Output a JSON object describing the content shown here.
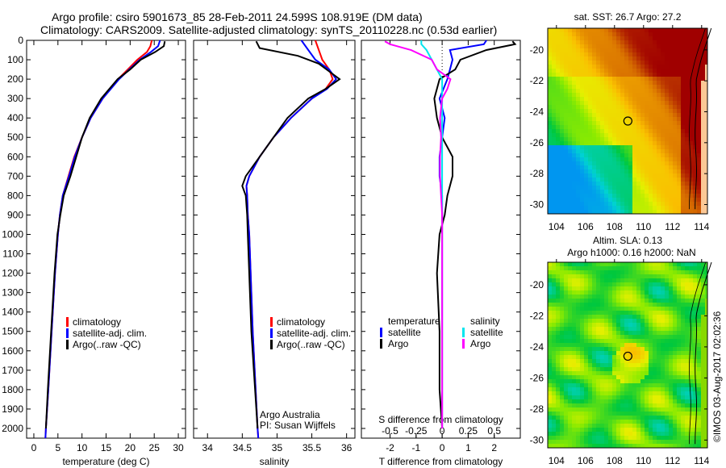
{
  "header": {
    "title_line1": "Argo profile: csiro 5901673_85 28-Feb-2011 24.599S 108.919E (DM data)",
    "title_line2": "Climatology: CARS2009. Satellite-adjusted climatology: synTS_20110228.nc (0.53d earlier)"
  },
  "credit": "©IMOS 03-Aug-2017 02:02:36",
  "colors": {
    "climatology": "#ff0000",
    "satellite": "#0000ff",
    "argo": "#000000",
    "sal_satellite": "#00e5ee",
    "sal_argo": "#ff00ff"
  },
  "chart_data": [
    {
      "type": "line",
      "id": "temperature",
      "xlabel": "temperature (deg C)",
      "ylabel": "",
      "xlim": [
        -1.5,
        31.5
      ],
      "ylim": [
        2050,
        0
      ],
      "xticks": [
        0,
        5,
        10,
        15,
        20,
        25,
        30
      ],
      "yticks": [
        0,
        100,
        200,
        300,
        400,
        500,
        600,
        700,
        800,
        900,
        1000,
        1100,
        1200,
        1300,
        1400,
        1500,
        1600,
        1700,
        1800,
        1900,
        2000
      ],
      "legend": [
        "climatology",
        "satellite-adj. clim.",
        "Argo(..raw -QC)"
      ],
      "legend_position": "bottom-left",
      "series": [
        {
          "name": "climatology",
          "color": "#ff0000",
          "depth": [
            0,
            30,
            60,
            100,
            150,
            200,
            300,
            400,
            500,
            600,
            700,
            800,
            900,
            1000,
            1200,
            1500,
            1800,
            2000,
            2050
          ],
          "values": [
            24.5,
            24.2,
            23.5,
            21.5,
            19.5,
            17.5,
            14.3,
            11.8,
            10.0,
            8.4,
            7.2,
            6.0,
            5.4,
            5.0,
            4.4,
            3.7,
            3.0,
            2.5,
            2.4
          ]
        },
        {
          "name": "satellite-adj. clim.",
          "color": "#0000ff",
          "depth": [
            0,
            30,
            60,
            100,
            150,
            200,
            300,
            400,
            500,
            600,
            700,
            800,
            900,
            1000,
            1200,
            1500,
            1800,
            2000,
            2050
          ],
          "values": [
            26.2,
            25.8,
            24.3,
            22.0,
            19.8,
            17.7,
            14.3,
            11.8,
            10.0,
            8.5,
            7.3,
            6.0,
            5.4,
            5.0,
            4.4,
            3.7,
            3.0,
            2.5,
            2.4
          ]
        },
        {
          "name": "Argo(..raw -QC)",
          "color": "#000000",
          "depth": [
            5,
            30,
            60,
            100,
            150,
            200,
            300,
            400,
            500,
            600,
            700,
            800,
            900,
            1000,
            1200,
            1500,
            1800,
            2000
          ],
          "values": [
            27.2,
            27.0,
            25.2,
            22.2,
            20.0,
            17.4,
            14.0,
            11.6,
            10.0,
            8.8,
            7.6,
            6.2,
            5.5,
            4.9,
            4.3,
            3.6,
            2.9,
            2.5
          ]
        }
      ]
    },
    {
      "type": "line",
      "id": "salinity",
      "xlabel": "salinity",
      "xlim": [
        33.8,
        36.12
      ],
      "ylim": [
        2050,
        0
      ],
      "xticks": [
        34,
        34.5,
        35,
        35.5,
        36
      ],
      "legend": [
        "climatology",
        "satellite-adj. clim.",
        "Argo(..raw -QC)"
      ],
      "legend_position": "bottom-left",
      "annotations": [
        "Argo Australia",
        "PI: Susan Wijffels"
      ],
      "series": [
        {
          "name": "climatology",
          "color": "#ff0000",
          "depth": [
            0,
            50,
            100,
            150,
            200,
            250,
            300,
            400,
            500,
            600,
            700,
            750,
            800,
            900,
            1000,
            1500,
            2000,
            2050
          ],
          "values": [
            35.55,
            35.6,
            35.65,
            35.75,
            35.8,
            35.7,
            35.5,
            35.2,
            34.95,
            34.75,
            34.6,
            34.56,
            34.57,
            34.58,
            34.6,
            34.65,
            34.72,
            34.73
          ]
        },
        {
          "name": "satellite-adj. clim.",
          "color": "#0000ff",
          "depth": [
            0,
            50,
            100,
            150,
            200,
            250,
            300,
            400,
            500,
            600,
            700,
            750,
            800,
            900,
            1000,
            1500,
            2000,
            2050
          ],
          "values": [
            35.35,
            35.45,
            35.55,
            35.75,
            35.85,
            35.72,
            35.5,
            35.2,
            34.95,
            34.75,
            34.6,
            34.56,
            34.57,
            34.58,
            34.6,
            34.65,
            34.72,
            34.73
          ]
        },
        {
          "name": "Argo(..raw -QC)",
          "color": "#000000",
          "depth": [
            5,
            40,
            80,
            120,
            160,
            200,
            250,
            300,
            400,
            500,
            600,
            700,
            750,
            800,
            900,
            1000,
            1500,
            2000
          ],
          "values": [
            34.7,
            34.75,
            35.3,
            35.6,
            35.75,
            35.9,
            35.7,
            35.45,
            35.15,
            34.95,
            34.75,
            34.55,
            34.5,
            34.55,
            34.57,
            34.58,
            34.63,
            34.72
          ]
        }
      ]
    },
    {
      "type": "line",
      "id": "difference",
      "xlabel": "T difference from climatology",
      "x2label": "S difference from climatology",
      "xlim": [
        -3.1,
        3.0
      ],
      "ylim": [
        2050,
        0
      ],
      "xticks": [
        -2,
        -1,
        0,
        1,
        2
      ],
      "x2ticks": [
        -0.5,
        -0.25,
        0,
        0.25,
        0.5
      ],
      "legend_temperature": {
        "title": "temperature",
        "items": [
          "satellite",
          "Argo"
        ]
      },
      "legend_salinity": {
        "title": "salinity",
        "items": [
          "satellite",
          "Argo"
        ]
      },
      "legend_position": "bottom",
      "series": [
        {
          "name": "temperature satellite",
          "color": "#0000ff",
          "units": "T",
          "depth": [
            0,
            20,
            50,
            100,
            150,
            200,
            300,
            400,
            500,
            600,
            700,
            800,
            900,
            1000,
            1500,
            2000
          ],
          "values": [
            1.7,
            1.6,
            0.3,
            0.4,
            0.3,
            0.2,
            -0.1,
            0.1,
            0.0,
            -0.1,
            -0.1,
            0.0,
            0.0,
            0.0,
            0.0,
            0.0
          ]
        },
        {
          "name": "temperature Argo",
          "color": "#000000",
          "units": "T",
          "depth": [
            5,
            20,
            50,
            100,
            150,
            200,
            300,
            400,
            500,
            600,
            700,
            800,
            900,
            1000,
            1200,
            1500,
            1800,
            2000
          ],
          "values": [
            2.7,
            2.8,
            1.7,
            0.7,
            0.5,
            -0.1,
            -0.3,
            -0.2,
            0.0,
            0.4,
            0.4,
            0.2,
            0.1,
            -0.1,
            -0.2,
            -0.1,
            -0.1,
            0.0
          ]
        },
        {
          "name": "salinity satellite",
          "color": "#00e5ee",
          "units": "S",
          "depth": [
            0,
            20,
            50,
            100,
            150,
            200,
            300,
            400,
            500,
            600,
            700,
            800,
            900,
            1000,
            1500,
            2000
          ],
          "values": [
            -0.2,
            -0.2,
            -0.15,
            -0.1,
            -0.05,
            0.0,
            0.0,
            0.0,
            0.0,
            0.0,
            0.0,
            0.0,
            0.0,
            0.0,
            0.0,
            0.0
          ]
        },
        {
          "name": "salinity Argo",
          "color": "#ff00ff",
          "units": "S",
          "depth": [
            5,
            20,
            50,
            100,
            150,
            200,
            250,
            300,
            400,
            500,
            600,
            700,
            800,
            900,
            1000,
            1500,
            2000
          ],
          "values": [
            -0.55,
            -0.5,
            -0.3,
            -0.1,
            -0.05,
            0.08,
            0.05,
            0.0,
            -0.02,
            -0.01,
            -0.02,
            -0.02,
            -0.01,
            0.0,
            0.0,
            0.0,
            0.0
          ]
        }
      ]
    },
    {
      "type": "heatmap",
      "id": "sst-map",
      "title": "sat. SST: 26.7 Argo: 27.2",
      "xlim": [
        103.4,
        114.4
      ],
      "ylim": [
        -30.6,
        -18.6
      ],
      "xticks": [
        104,
        106,
        108,
        110,
        112,
        114
      ],
      "yticks": [
        -20,
        -22,
        -24,
        -26,
        -28,
        -30
      ],
      "marker": {
        "lon": 108.919,
        "lat": -24.599
      }
    },
    {
      "type": "heatmap",
      "id": "sla-map",
      "title_line1": "Altim. SLA: 0.13",
      "title_line2": "Argo h1000: 0.16 h2000: NaN",
      "xlim": [
        103.4,
        114.4
      ],
      "ylim": [
        -30.5,
        -18.55
      ],
      "xticks": [
        104,
        106,
        108,
        110,
        112,
        114
      ],
      "yticks": [
        -20,
        -22,
        -24,
        -26,
        -28,
        -30
      ],
      "marker": {
        "lon": 108.919,
        "lat": -24.599
      }
    }
  ]
}
